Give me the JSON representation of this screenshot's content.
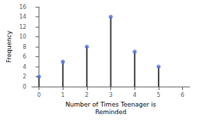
{
  "chart_data": {
    "type": "stem",
    "x": [
      0,
      1,
      2,
      3,
      4,
      5
    ],
    "values": [
      2,
      5,
      8,
      14,
      7,
      4
    ],
    "xlim": [
      -0.3,
      6.3
    ],
    "xticks": [
      0,
      1,
      2,
      3,
      4,
      5,
      6
    ],
    "ylim": [
      0,
      16
    ],
    "yticks": [
      0,
      2,
      4,
      6,
      8,
      10,
      12,
      14,
      16
    ],
    "xlabel": "Number of Times Teenager is\nReminded",
    "ylabel": "Frequency",
    "grid": false
  }
}
